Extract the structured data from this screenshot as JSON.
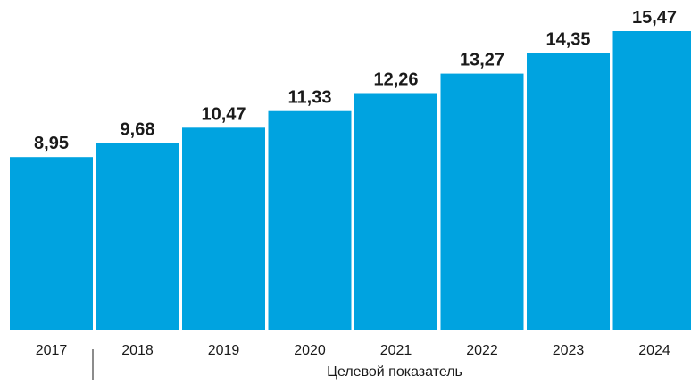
{
  "chart_data": {
    "type": "bar",
    "categories": [
      "2017",
      "2018",
      "2019",
      "2020",
      "2021",
      "2022",
      "2023",
      "2024"
    ],
    "values": [
      8.95,
      9.68,
      10.47,
      11.33,
      12.26,
      13.27,
      14.35,
      15.47
    ],
    "value_labels": [
      "8,95",
      "9,68",
      "10,47",
      "11,33",
      "12,26",
      "13,27",
      "14,35",
      "15,47"
    ],
    "title": "",
    "xlabel": "",
    "ylabel": "",
    "ylim": [
      0,
      15.47
    ],
    "grid": false,
    "bar_color": "#00A3E0",
    "annotation": "Целевой показатель"
  }
}
